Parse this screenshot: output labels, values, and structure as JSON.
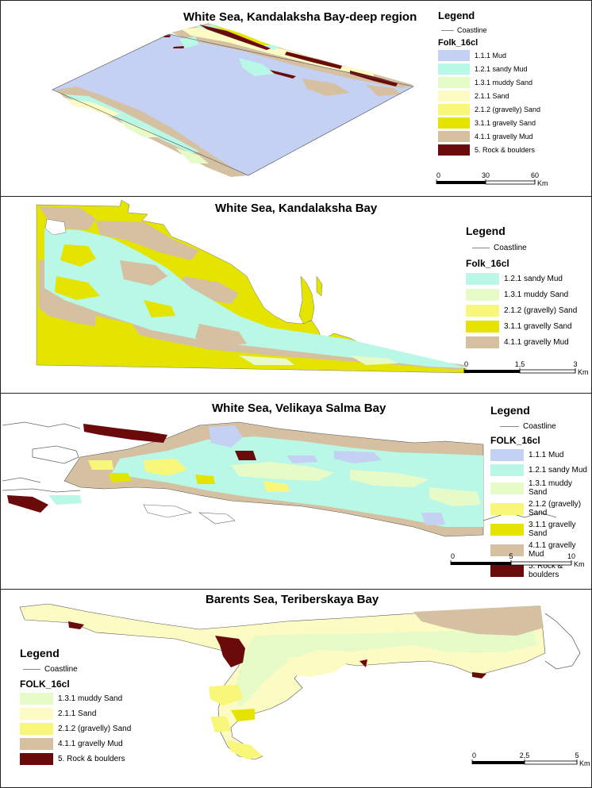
{
  "colors": {
    "mud": "#c5d1f2",
    "sandy_mud": "#b9f7e6",
    "muddy_sand": "#e7fbc8",
    "sand": "#fcfbc4",
    "gravelly_sand_paren": "#f9f77a",
    "gravelly_sand": "#e4e400",
    "gravelly_mud": "#d5c1a2",
    "rock": "#6b0a0a",
    "coastline": "#888888"
  },
  "panels": [
    {
      "title": "White Sea, Kandalaksha Bay-deep region",
      "legend": {
        "title": "Legend",
        "coastline": "Coastline",
        "class_field": "Folk_16cl",
        "items": [
          {
            "label": "1.1.1  Mud",
            "color_key": "mud"
          },
          {
            "label": "1.2.1 sandy Mud",
            "color_key": "sandy_mud"
          },
          {
            "label": "1.3.1 muddy Sand",
            "color_key": "muddy_sand"
          },
          {
            "label": "2.1.1 Sand",
            "color_key": "sand"
          },
          {
            "label": "2.1.2 (gravelly) Sand",
            "color_key": "gravelly_sand_paren"
          },
          {
            "label": "3.1.1 gravelly Sand",
            "color_key": "gravelly_sand"
          },
          {
            "label": "4.1.1 gravelly Mud",
            "color_key": "gravelly_mud"
          },
          {
            "label": "5. Rock & boulders",
            "color_key": "rock"
          }
        ]
      },
      "scale": {
        "ticks": [
          "0",
          "30",
          "60"
        ],
        "unit": "Km"
      }
    },
    {
      "title": "White Sea, Kandalaksha Bay",
      "legend": {
        "title": "Legend",
        "coastline": "Coastline",
        "class_field": "Folk_16cl",
        "items": [
          {
            "label": "1.2.1 sandy Mud",
            "color_key": "sandy_mud"
          },
          {
            "label": "1.3.1 muddy Sand",
            "color_key": "muddy_sand"
          },
          {
            "label": "2.1.2 (gravelly) Sand",
            "color_key": "gravelly_sand_paren"
          },
          {
            "label": "3.1.1 gravelly Sand",
            "color_key": "gravelly_sand"
          },
          {
            "label": "4.1.1 gravelly Mud",
            "color_key": "gravelly_mud"
          }
        ]
      },
      "scale": {
        "ticks": [
          "0",
          "1,5",
          "3"
        ],
        "unit": "Km"
      }
    },
    {
      "title": "White Sea, Velikaya Salma Bay",
      "legend": {
        "title": "Legend",
        "coastline": "Coastline",
        "class_field": "FOLK_16cl",
        "items": [
          {
            "label": "1.1.1  Mud",
            "color_key": "mud"
          },
          {
            "label": "1.2.1 sandy Mud",
            "color_key": "sandy_mud"
          },
          {
            "label": "1.3.1 muddy Sand",
            "color_key": "muddy_sand"
          },
          {
            "label": "2.1.2 (gravelly) Sand",
            "color_key": "gravelly_sand_paren"
          },
          {
            "label": "3.1.1 gravelly Sand",
            "color_key": "gravelly_sand"
          },
          {
            "label": "4.1.1 gravelly Mud",
            "color_key": "gravelly_mud"
          },
          {
            "label": "5. Rock & boulders",
            "color_key": "rock"
          }
        ]
      },
      "scale": {
        "ticks": [
          "0",
          "5",
          "10"
        ],
        "unit": "Km"
      }
    },
    {
      "title": "Barents Sea, Teriberskaya Bay",
      "legend": {
        "title": "Legend",
        "coastline": "Coastline",
        "class_field": "FOLK_16cl",
        "items": [
          {
            "label": "1.3.1 muddy Sand",
            "color_key": "muddy_sand"
          },
          {
            "label": "2.1.1 Sand",
            "color_key": "sand"
          },
          {
            "label": "2.1.2 (gravelly) Sand",
            "color_key": "gravelly_sand_paren"
          },
          {
            "label": "4.1.1 gravelly Mud",
            "color_key": "gravelly_mud"
          },
          {
            "label": "5. Rock & boulders",
            "color_key": "rock"
          }
        ]
      },
      "scale": {
        "ticks": [
          "0",
          "2,5",
          "5"
        ],
        "unit": "Km"
      }
    }
  ]
}
